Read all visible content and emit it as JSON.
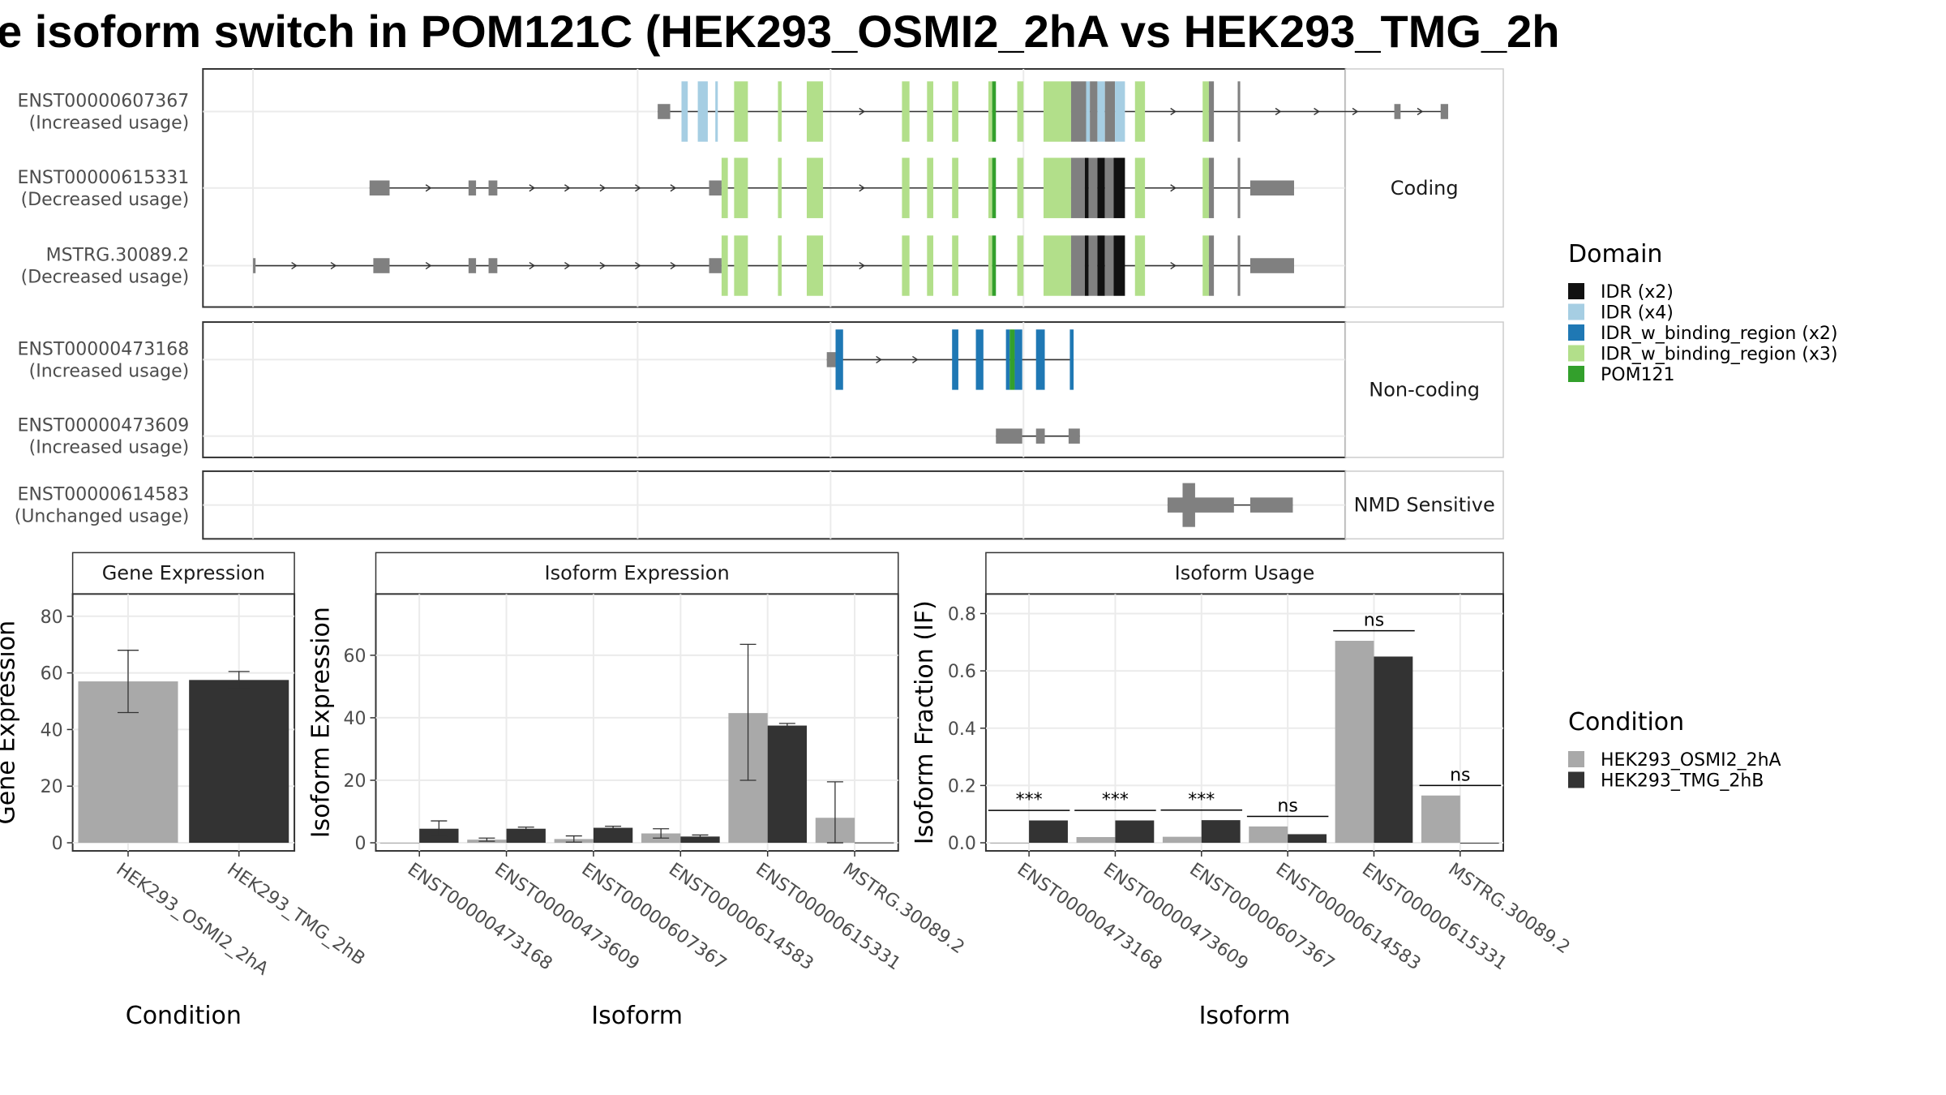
{
  "title": "e isoform switch in POM121C (HEK293_OSMI2_2hA vs HEK293_TMG_2h",
  "colors": {
    "osmi": "#a9a9a9",
    "tmg": "#333333",
    "utr": "#808080",
    "IDR (x2)": "#111111",
    "IDR (x4)": "#a6cee3",
    "IDR_w_binding_region (x2)": "#1f78b4",
    "IDR_w_binding_region (x3)": "#b2df8a",
    "POM121": "#33a02c"
  },
  "domain_legend": {
    "title": "Domain",
    "items": [
      "IDR (x2)",
      "IDR (x4)",
      "IDR_w_binding_region (x2)",
      "IDR_w_binding_region (x3)",
      "POM121"
    ]
  },
  "condition_legend": {
    "title": "Condition",
    "items": [
      "HEK293_OSMI2_2hA",
      "HEK293_TMG_2hB"
    ]
  },
  "transcript_panels": [
    {
      "label": "Coding",
      "transcripts": [
        {
          "id": "ENST00000607367",
          "usage": "(Increased usage)",
          "utr": [
            [
              525,
              535
            ],
            [
              1113,
              1118
            ],
            [
              1150,
              1156
            ]
          ],
          "exons": [
            [
              535,
              549
            ],
            [
              557,
              565
            ],
            [
              569,
              575
            ],
            [
              586,
              597
            ],
            [
              621,
              624
            ],
            [
              644,
              657
            ],
            [
              720,
              726
            ],
            [
              740,
              745
            ],
            [
              760,
              765
            ],
            [
              789,
              795
            ],
            [
              812,
              817
            ],
            [
              833,
              855
            ],
            [
              855,
              876
            ],
            [
              876,
              898
            ],
            [
              906,
              914
            ],
            [
              960,
              965
            ],
            [
              965,
              969
            ],
            [
              988,
              990
            ]
          ],
          "segs": [
            [
              [
                544,
                549,
                "IDR (x4)"
              ]
            ],
            [
              [
                557,
                565,
                "IDR (x4)"
              ]
            ],
            [
              [
                571,
                573,
                "IDR (x4)"
              ]
            ],
            [
              [
                586,
                597,
                "IDR_w_binding_region (x3)"
              ]
            ],
            [
              [
                621,
                624,
                "IDR_w_binding_region (x3)"
              ]
            ],
            [
              [
                644,
                657,
                "IDR_w_binding_region (x3)"
              ]
            ],
            [
              [
                720,
                726,
                "IDR_w_binding_region (x3)"
              ]
            ],
            [
              [
                740,
                745,
                "IDR_w_binding_region (x3)"
              ]
            ],
            [
              [
                760,
                765,
                "IDR_w_binding_region (x3)"
              ]
            ],
            [
              [
                789,
                792,
                "IDR_w_binding_region (x3)"
              ],
              [
                792,
                795,
                "POM121"
              ]
            ],
            [
              [
                812,
                817,
                "IDR_w_binding_region (x3)"
              ]
            ],
            [
              [
                833,
                855,
                "IDR_w_binding_region (x3)"
              ]
            ],
            [
              [
                855,
                867,
                "utr"
              ],
              [
                867,
                870,
                "IDR (x4)"
              ],
              [
                870,
                876,
                "utr"
              ]
            ],
            [
              [
                876,
                882,
                "IDR (x4)"
              ],
              [
                882,
                890,
                "utr"
              ],
              [
                890,
                898,
                "IDR (x4)"
              ]
            ],
            [
              [
                906,
                914,
                "IDR_w_binding_region (x3)"
              ]
            ],
            [
              [
                960,
                965,
                "IDR_w_binding_region (x3)"
              ]
            ],
            [
              [
                965,
                969,
                "utr"
              ]
            ],
            [
              [
                988,
                990,
                "utr"
              ]
            ]
          ]
        },
        {
          "id": "ENST00000615331",
          "usage": "(Decreased usage)",
          "utr": [
            [
              295,
              311
            ],
            [
              374,
              380
            ],
            [
              390,
              397
            ],
            [
              566,
              576
            ],
            [
              998,
              1033
            ]
          ],
          "exons": [
            [
              566,
              581
            ],
            [
              586,
              597
            ],
            [
              621,
              624
            ],
            [
              644,
              657
            ],
            [
              720,
              726
            ],
            [
              740,
              745
            ],
            [
              760,
              765
            ],
            [
              789,
              795
            ],
            [
              812,
              817
            ],
            [
              833,
              855
            ],
            [
              855,
              876
            ],
            [
              876,
              898
            ],
            [
              906,
              914
            ],
            [
              960,
              965
            ],
            [
              965,
              969
            ],
            [
              988,
              990
            ]
          ],
          "segs": [
            [
              [
                576,
                581,
                "IDR_w_binding_region (x3)"
              ]
            ],
            [
              [
                586,
                597,
                "IDR_w_binding_region (x3)"
              ]
            ],
            [
              [
                621,
                624,
                "IDR_w_binding_region (x3)"
              ]
            ],
            [
              [
                644,
                657,
                "IDR_w_binding_region (x3)"
              ]
            ],
            [
              [
                720,
                726,
                "IDR_w_binding_region (x3)"
              ]
            ],
            [
              [
                740,
                745,
                "IDR_w_binding_region (x3)"
              ]
            ],
            [
              [
                760,
                765,
                "IDR_w_binding_region (x3)"
              ]
            ],
            [
              [
                789,
                792,
                "IDR_w_binding_region (x3)"
              ],
              [
                792,
                795,
                "POM121"
              ]
            ],
            [
              [
                812,
                817,
                "IDR_w_binding_region (x3)"
              ]
            ],
            [
              [
                833,
                855,
                "IDR_w_binding_region (x3)"
              ]
            ],
            [
              [
                855,
                866,
                "utr"
              ],
              [
                866,
                869,
                "IDR (x2)"
              ],
              [
                869,
                876,
                "utr"
              ]
            ],
            [
              [
                876,
                882,
                "IDR (x2)"
              ],
              [
                882,
                889,
                "utr"
              ],
              [
                889,
                898,
                "IDR (x2)"
              ]
            ],
            [
              [
                906,
                914,
                "IDR_w_binding_region (x3)"
              ]
            ],
            [
              [
                960,
                965,
                "IDR_w_binding_region (x3)"
              ]
            ],
            [
              [
                965,
                969,
                "utr"
              ]
            ],
            [
              [
                988,
                990,
                "utr"
              ]
            ]
          ]
        },
        {
          "id": "MSTRG.30089.2",
          "usage": "(Decreased usage)",
          "utr": [
            [
              202,
              204
            ],
            [
              298,
              311
            ],
            [
              374,
              380
            ],
            [
              390,
              397
            ],
            [
              566,
              576
            ],
            [
              998,
              1033
            ]
          ],
          "exons": [
            [
              566,
              581
            ],
            [
              586,
              597
            ],
            [
              621,
              624
            ],
            [
              644,
              657
            ],
            [
              720,
              726
            ],
            [
              740,
              745
            ],
            [
              760,
              765
            ],
            [
              789,
              795
            ],
            [
              812,
              817
            ],
            [
              833,
              855
            ],
            [
              855,
              876
            ],
            [
              876,
              898
            ],
            [
              906,
              914
            ],
            [
              960,
              965
            ],
            [
              965,
              969
            ],
            [
              988,
              990
            ]
          ],
          "segs": [
            [
              [
                576,
                581,
                "IDR_w_binding_region (x3)"
              ]
            ],
            [
              [
                586,
                597,
                "IDR_w_binding_region (x3)"
              ]
            ],
            [
              [
                621,
                624,
                "IDR_w_binding_region (x3)"
              ]
            ],
            [
              [
                644,
                657,
                "IDR_w_binding_region (x3)"
              ]
            ],
            [
              [
                720,
                726,
                "IDR_w_binding_region (x3)"
              ]
            ],
            [
              [
                740,
                745,
                "IDR_w_binding_region (x3)"
              ]
            ],
            [
              [
                760,
                765,
                "IDR_w_binding_region (x3)"
              ]
            ],
            [
              [
                789,
                792,
                "IDR_w_binding_region (x3)"
              ],
              [
                792,
                795,
                "POM121"
              ]
            ],
            [
              [
                812,
                817,
                "IDR_w_binding_region (x3)"
              ]
            ],
            [
              [
                833,
                855,
                "IDR_w_binding_region (x3)"
              ]
            ],
            [
              [
                855,
                866,
                "utr"
              ],
              [
                866,
                869,
                "IDR (x2)"
              ],
              [
                869,
                876,
                "utr"
              ]
            ],
            [
              [
                876,
                882,
                "IDR (x2)"
              ],
              [
                882,
                889,
                "utr"
              ],
              [
                889,
                898,
                "IDR (x2)"
              ]
            ],
            [
              [
                906,
                914,
                "IDR_w_binding_region (x3)"
              ]
            ],
            [
              [
                960,
                965,
                "IDR_w_binding_region (x3)"
              ]
            ],
            [
              [
                965,
                969,
                "utr"
              ]
            ],
            [
              [
                988,
                990,
                "utr"
              ]
            ]
          ]
        }
      ]
    },
    {
      "label": "Non-coding",
      "transcripts": [
        {
          "id": "ENST00000473168",
          "usage": "(Increased usage)",
          "utr": [
            [
              660,
              667
            ]
          ],
          "exons": [
            [
              667,
              673
            ],
            [
              760,
              765
            ],
            [
              779,
              785
            ],
            [
              803,
              816
            ],
            [
              827,
              834
            ],
            [
              854,
              857
            ]
          ],
          "segs": [
            [
              [
                667,
                673,
                "IDR_w_binding_region (x2)"
              ]
            ],
            [
              [
                760,
                765,
                "IDR_w_binding_region (x2)"
              ]
            ],
            [
              [
                779,
                785,
                "IDR_w_binding_region (x2)"
              ]
            ],
            [
              [
                803,
                806,
                "IDR_w_binding_region (x2)"
              ],
              [
                806,
                810,
                "POM121"
              ],
              [
                810,
                816,
                "IDR_w_binding_region (x2)"
              ]
            ],
            [
              [
                827,
                834,
                "IDR_w_binding_region (x2)"
              ]
            ],
            [
              [
                854,
                857,
                "IDR_w_binding_region (x2)"
              ]
            ]
          ]
        },
        {
          "id": "ENST00000473609",
          "usage": "(Increased usage)",
          "utr": [
            [
              795,
              816
            ],
            [
              827,
              834
            ],
            [
              853,
              862
            ]
          ],
          "exons": [],
          "segs": []
        }
      ]
    },
    {
      "label": "NMD Sensitive",
      "transcripts": [
        {
          "id": "ENST00000614583",
          "usage": "(Unchanged usage)",
          "utr": [
            [
              932,
              985
            ],
            [
              998,
              1032
            ]
          ],
          "thick": [
            [
              944,
              954
            ]
          ],
          "exons": [],
          "segs": []
        }
      ]
    }
  ],
  "chart_data": [
    {
      "type": "bar",
      "title": "Gene Expression",
      "xlabel": "Condition",
      "ylabel": "Gene Expression",
      "categories": [
        "HEK293_OSMI2_2hA",
        "HEK293_TMG_2hB"
      ],
      "ylim": [
        0,
        85
      ],
      "yticks": [
        "0",
        "20",
        "40",
        "60",
        "80"
      ],
      "values": [
        57,
        57.5
      ],
      "errors": [
        [
          46,
          68
        ],
        [
          54.5,
          60.5
        ]
      ]
    },
    {
      "type": "bar",
      "title": "Isoform Expression",
      "xlabel": "Isoform",
      "ylabel": "Isoform Expression",
      "categories": [
        "ENST00000473168",
        "ENST00000473609",
        "ENST00000607367",
        "ENST00000614583",
        "ENST00000615331",
        "MSTRG.30089.2"
      ],
      "ylim": [
        0,
        77
      ],
      "yticks": [
        "0",
        "20",
        "40",
        "60"
      ],
      "series": [
        {
          "name": "HEK293_OSMI2_2hA",
          "values": [
            0,
            1,
            1.2,
            3,
            41.5,
            8
          ],
          "errors": [
            null,
            [
              0.5,
              1.5
            ],
            [
              0.2,
              2.2
            ],
            [
              1.5,
              4.5
            ],
            [
              20,
              63.5
            ],
            [
              0,
              19.5
            ]
          ]
        },
        {
          "name": "HEK293_TMG_2hB",
          "values": [
            4.5,
            4.5,
            4.8,
            2,
            37.5,
            0.1
          ],
          "errors": [
            [
              2,
              7
            ],
            [
              3.7,
              5
            ],
            [
              4.2,
              5.3
            ],
            [
              1.5,
              2.5
            ],
            [
              36.8,
              38.2
            ],
            null
          ]
        }
      ]
    },
    {
      "type": "bar",
      "title": "Isoform Usage",
      "xlabel": "Isoform",
      "ylabel": "Isoform Fraction (IF)",
      "categories": [
        "ENST00000473168",
        "ENST00000473609",
        "ENST00000607367",
        "ENST00000614583",
        "ENST00000615331",
        "MSTRG.30089.2"
      ],
      "ylim": [
        0,
        0.84
      ],
      "yticks": [
        "0.0",
        "0.2",
        "0.4",
        "0.6",
        "0.8"
      ],
      "series": [
        {
          "name": "HEK293_OSMI2_2hA",
          "values": [
            0.0,
            0.02,
            0.021,
            0.057,
            0.705,
            0.165
          ]
        },
        {
          "name": "HEK293_TMG_2hB",
          "values": [
            0.078,
            0.078,
            0.079,
            0.03,
            0.65,
            0.0
          ]
        }
      ],
      "significance": [
        "***",
        "***",
        "***",
        "ns",
        "ns",
        "ns"
      ]
    }
  ]
}
